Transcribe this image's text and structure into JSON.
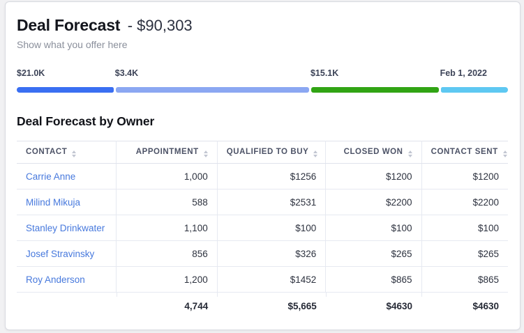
{
  "header": {
    "title": "Deal Forecast",
    "amount": "- $90,303",
    "subtitle": "Show what you offer here"
  },
  "progress_bar": {
    "segments": [
      {
        "label": "$21.0K",
        "color": "#3a6ff2",
        "width_pct": 19.8
      },
      {
        "label": "$3.4K",
        "color": "#8ba7f2",
        "width_pct": 39.4
      },
      {
        "label": "$15.1K",
        "color": "#31a414",
        "width_pct": 26.1
      },
      {
        "label": "Feb 1, 2022",
        "color": "#5ec8f2",
        "width_pct": 13.7
      }
    ]
  },
  "table": {
    "title": "Deal Forecast by Owner",
    "columns": [
      {
        "label": "CONTACT"
      },
      {
        "label": "APPOINTMENT"
      },
      {
        "label": "QUALIFIED TO BUY"
      },
      {
        "label": "CLOSED WON"
      },
      {
        "label": "CONTACT SENT"
      }
    ],
    "rows": [
      {
        "contact": "Carrie Anne",
        "appointment": "1,000",
        "qualified": "$1256",
        "closed": "$1200",
        "sent": "$1200"
      },
      {
        "contact": "Milind Mikuja",
        "appointment": "588",
        "qualified": "$2531",
        "closed": "$2200",
        "sent": "$2200"
      },
      {
        "contact": "Stanley Drinkwater",
        "appointment": "1,100",
        "qualified": "$100",
        "closed": "$100",
        "sent": "$100"
      },
      {
        "contact": "Josef Stravinsky",
        "appointment": "856",
        "qualified": "$326",
        "closed": "$265",
        "sent": "$265"
      },
      {
        "contact": "Roy Anderson",
        "appointment": "1,200",
        "qualified": "$1452",
        "closed": "$865",
        "sent": "$865"
      }
    ],
    "totals": {
      "appointment": "4,744",
      "qualified": "$5,665",
      "closed": "$4630",
      "sent": "$4630"
    }
  }
}
